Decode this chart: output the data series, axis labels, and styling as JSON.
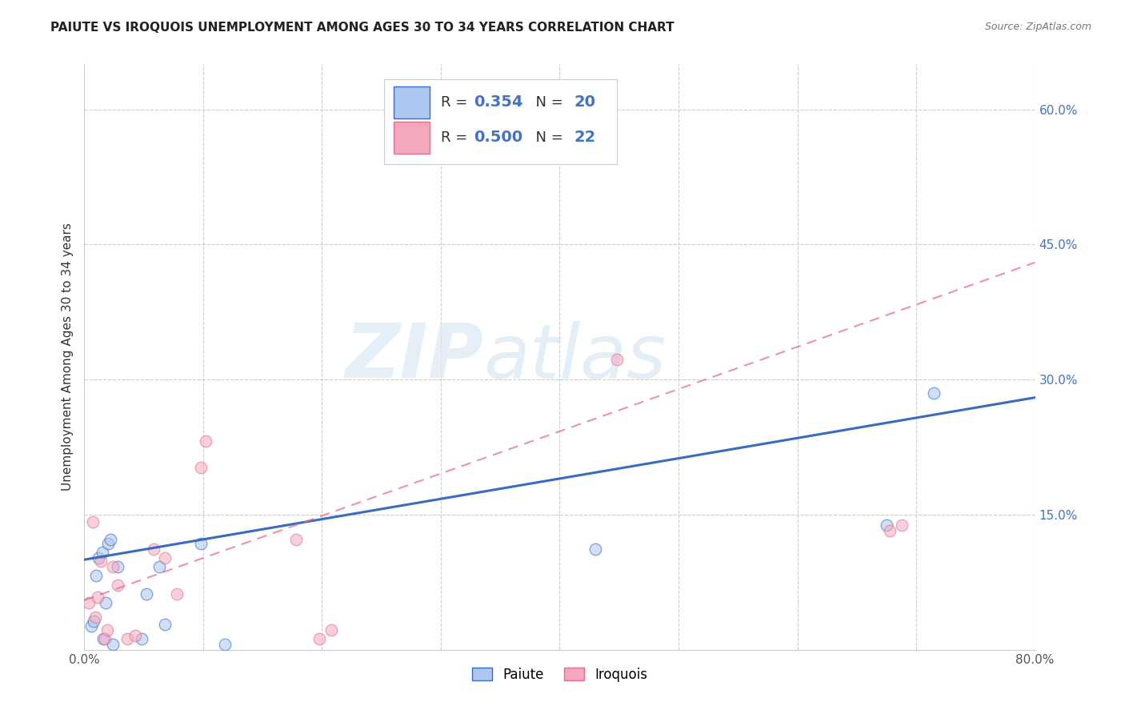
{
  "title": "PAIUTE VS IROQUOIS UNEMPLOYMENT AMONG AGES 30 TO 34 YEARS CORRELATION CHART",
  "source": "Source: ZipAtlas.com",
  "ylabel": "Unemployment Among Ages 30 to 34 years",
  "xlim": [
    0.0,
    0.8
  ],
  "ylim": [
    0.0,
    0.65
  ],
  "xticks": [
    0.0,
    0.1,
    0.2,
    0.3,
    0.4,
    0.5,
    0.6,
    0.7,
    0.8
  ],
  "xticklabels": [
    "0.0%",
    "",
    "",
    "",
    "",
    "",
    "",
    "",
    "80.0%"
  ],
  "ytick_right": [
    0.15,
    0.3,
    0.45,
    0.6
  ],
  "ytick_right_labels": [
    "15.0%",
    "30.0%",
    "45.0%",
    "60.0%"
  ],
  "paiute_color": "#adc8f0",
  "iroquois_color": "#f5a8bc",
  "paiute_line_color": "#3a6bbf",
  "iroquois_line_color": "#e07090",
  "paiute_scatter_x": [
    0.006,
    0.008,
    0.01,
    0.012,
    0.015,
    0.016,
    0.018,
    0.02,
    0.022,
    0.024,
    0.028,
    0.048,
    0.052,
    0.063,
    0.068,
    0.098,
    0.118,
    0.43,
    0.675,
    0.715
  ],
  "paiute_scatter_y": [
    0.026,
    0.032,
    0.082,
    0.102,
    0.108,
    0.012,
    0.052,
    0.118,
    0.122,
    0.006,
    0.092,
    0.012,
    0.062,
    0.092,
    0.028,
    0.118,
    0.006,
    0.112,
    0.138,
    0.285
  ],
  "iroquois_scatter_x": [
    0.004,
    0.007,
    0.009,
    0.011,
    0.014,
    0.017,
    0.019,
    0.024,
    0.028,
    0.036,
    0.043,
    0.058,
    0.068,
    0.078,
    0.098,
    0.102,
    0.178,
    0.198,
    0.208,
    0.448,
    0.678,
    0.688
  ],
  "iroquois_scatter_y": [
    0.052,
    0.142,
    0.036,
    0.058,
    0.098,
    0.012,
    0.022,
    0.092,
    0.072,
    0.012,
    0.016,
    0.112,
    0.102,
    0.062,
    0.202,
    0.232,
    0.122,
    0.012,
    0.022,
    0.322,
    0.132,
    0.138
  ],
  "paiute_line_x": [
    0.0,
    0.8
  ],
  "paiute_line_y": [
    0.1,
    0.28
  ],
  "iroquois_line_x": [
    0.0,
    0.8
  ],
  "iroquois_line_y": [
    0.055,
    0.43
  ],
  "grid_color": "#cccccc",
  "bg_color": "#ffffff",
  "title_fontsize": 11,
  "source_fontsize": 9,
  "scatter_size": 110,
  "scatter_alpha": 0.55,
  "scatter_linewidth": 1.0,
  "legend_r_paiute": "0.354",
  "legend_n_paiute": "20",
  "legend_r_iroquois": "0.500",
  "legend_n_iroquois": "22"
}
